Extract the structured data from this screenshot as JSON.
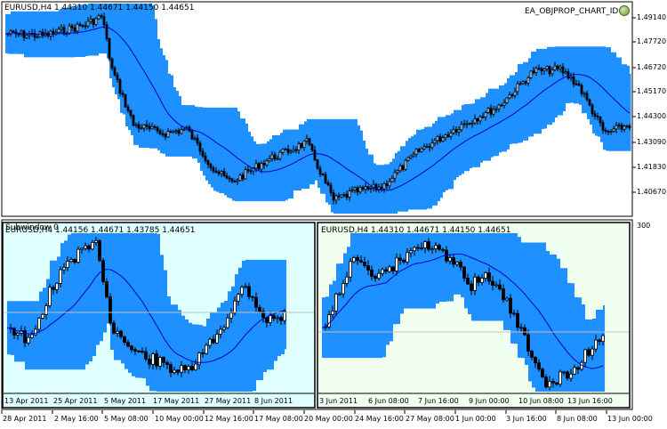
{
  "main": {
    "header": "EURUSD,H4  1.44310 1.44671 1.44150 1.44651",
    "expert_label": "EA_OBJPROP_CHART_ID",
    "price_ticks": [
      "1.49140",
      "1.47720",
      "1.46720",
      "1.45170",
      "1.44300",
      "1.43090",
      "1.41830",
      "1.40670"
    ],
    "time_ticks": [
      "28 Apr 2011",
      "2 May 16:00",
      "5 May 08:00",
      "10 May 00:00",
      "12 May 16:00",
      "17 May 08:00",
      "20 May 00:00",
      "24 May 16:00",
      "27 May 08:00",
      "1 Jun 00:00",
      "3 Jun 16:00",
      "8 Jun 08:00",
      "13 Jun 00:00"
    ],
    "colors": {
      "band": "#1e90ff",
      "line": "#0000cd",
      "candle_bull": "#ffffff",
      "candle_bear": "#000000"
    }
  },
  "subwindow": {
    "label": "Subwindow 0",
    "scale_label": "300"
  },
  "left_chart": {
    "header": "EURUSD,H4 1.44156 1.44671 1.43785 1.44651",
    "time_ticks": [
      "13 Apr 2011",
      "25 Apr 2011",
      "5 May 2011",
      "17 May 2011",
      "27 May 2011",
      "8 Jun 2011"
    ],
    "colors": {
      "background": "#e0ffff"
    }
  },
  "right_chart": {
    "header": "EURUSD,H4  1.44310 1.44671 1.44150 1.44651",
    "time_ticks": [
      "3 Jun 2011",
      "6 Jun 08:00",
      "7 Jun 16:00",
      "9 Jun 00:00",
      "10 Jun 08:00",
      "13 Jun 16:00"
    ],
    "colors": {
      "background": "#f0fff0"
    }
  }
}
